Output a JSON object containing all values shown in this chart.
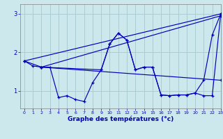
{
  "title": "Graphe des températures (°c)",
  "background_color": "#cce8ec",
  "line_color": "#0000bb",
  "grid_color": "#aaccd0",
  "xlim": [
    -0.5,
    23
  ],
  "ylim": [
    0.55,
    3.25
  ],
  "yticks": [
    1,
    2,
    3
  ],
  "xticks": [
    0,
    1,
    2,
    3,
    4,
    5,
    6,
    7,
    8,
    9,
    10,
    11,
    12,
    13,
    14,
    15,
    16,
    17,
    18,
    19,
    20,
    21,
    22,
    23
  ],
  "series": [
    {
      "x": [
        0,
        1,
        2,
        3,
        4,
        5,
        6,
        7,
        8,
        9,
        10,
        11,
        12,
        13,
        14,
        15,
        16,
        17,
        18,
        19,
        20,
        21,
        22,
        23
      ],
      "y": [
        1.78,
        1.65,
        1.62,
        1.62,
        0.83,
        0.88,
        0.78,
        0.73,
        1.22,
        1.55,
        2.22,
        2.5,
        2.32,
        1.55,
        1.62,
        1.62,
        0.9,
        0.88,
        0.9,
        0.9,
        0.95,
        0.88,
        0.88,
        3.0
      ]
    },
    {
      "x": [
        0,
        23
      ],
      "y": [
        1.78,
        3.0
      ]
    },
    {
      "x": [
        2,
        23
      ],
      "y": [
        1.62,
        2.95
      ]
    },
    {
      "x": [
        2,
        23
      ],
      "y": [
        1.62,
        1.28
      ]
    },
    {
      "x": [
        0,
        2,
        9,
        10,
        11,
        12,
        13,
        14,
        15,
        16,
        17,
        18,
        19,
        20,
        21,
        22,
        23
      ],
      "y": [
        1.78,
        1.62,
        1.55,
        2.22,
        2.5,
        2.32,
        1.55,
        1.62,
        1.62,
        0.9,
        0.88,
        0.9,
        0.9,
        0.95,
        1.28,
        2.45,
        3.0
      ]
    }
  ]
}
